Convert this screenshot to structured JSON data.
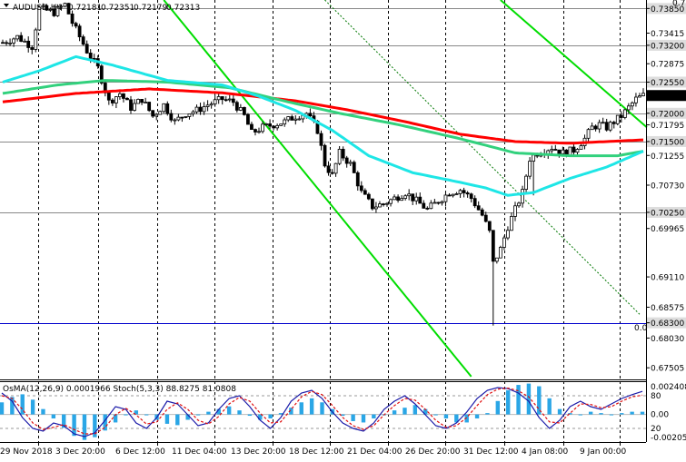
{
  "window": {
    "icon": "chevron-down-icon"
  },
  "chart_data": {
    "type": "candlestick",
    "header": {
      "symbol": "AUDUSD,H4",
      "ohlc": [
        "0.72181",
        "0.72351",
        "0.72179",
        "0.72313"
      ]
    },
    "price_axis": {
      "ylim": [
        0.673,
        0.74
      ],
      "ticks": [
        "0.73850",
        "0.73415",
        "0.73200",
        "0.72875",
        "0.72550",
        "0.72313",
        "0.72000",
        "0.71795",
        "0.71500",
        "0.71255",
        "0.70730",
        "0.70250",
        "0.69965",
        "0.69110",
        "0.68575",
        "0.68300",
        "0.68030",
        "0.67505"
      ],
      "tick_values": [
        0.7385,
        0.73415,
        0.732,
        0.72875,
        0.7255,
        0.72313,
        0.72,
        0.71795,
        0.715,
        0.71255,
        0.7073,
        0.7025,
        0.69965,
        0.6911,
        0.68575,
        0.683,
        0.6803,
        0.67505
      ],
      "boxed": [
        "0.73850",
        "0.73200",
        "0.72550",
        "0.72000",
        "0.71500",
        "0.70250",
        "0.68300"
      ],
      "current": "0.72313",
      "current_value": 0.72313,
      "top_cut": "0.7",
      "level_label": "0.0",
      "level_line": 0.683
    },
    "time_axis": {
      "labels": [
        "29 Nov 2018",
        "3 Dec 20:00",
        "6 Dec 12:00",
        "11 Dec 04:00",
        "13 Dec 20:00",
        "18 Dec 12:00",
        "21 Dec 04:00",
        "26 Dec 20:00",
        "31 Dec 12:00",
        "4 Jan 08:00",
        "9 Jan 00:00"
      ],
      "bar_count": 176
    },
    "horizontal_levels": [
      0.7385,
      0.732,
      0.7255,
      0.72,
      0.715,
      0.7025
    ],
    "price_path": [
      [
        0,
        0.7325
      ],
      [
        4,
        0.7335
      ],
      [
        8,
        0.7318
      ],
      [
        10,
        0.7385
      ],
      [
        14,
        0.7378
      ],
      [
        17,
        0.7392
      ],
      [
        19,
        0.736
      ],
      [
        23,
        0.731
      ],
      [
        26,
        0.728
      ],
      [
        29,
        0.722
      ],
      [
        32,
        0.7235
      ],
      [
        35,
        0.721
      ],
      [
        38,
        0.7225
      ],
      [
        41,
        0.7195
      ],
      [
        44,
        0.7215
      ],
      [
        47,
        0.7185
      ],
      [
        50,
        0.72
      ],
      [
        53,
        0.7205
      ],
      [
        56,
        0.7215
      ],
      [
        60,
        0.7225
      ],
      [
        63,
        0.722
      ],
      [
        66,
        0.7195
      ],
      [
        68,
        0.7165
      ],
      [
        71,
        0.7175
      ],
      [
        74,
        0.718
      ],
      [
        77,
        0.7185
      ],
      [
        80,
        0.7195
      ],
      [
        83,
        0.72
      ],
      [
        86,
        0.717
      ],
      [
        88,
        0.711
      ],
      [
        90,
        0.709
      ],
      [
        92,
        0.713
      ],
      [
        95,
        0.711
      ],
      [
        98,
        0.706
      ],
      [
        101,
        0.7035
      ],
      [
        104,
        0.704
      ],
      [
        107,
        0.705
      ],
      [
        110,
        0.706
      ],
      [
        113,
        0.7045
      ],
      [
        116,
        0.703
      ],
      [
        119,
        0.7045
      ],
      [
        122,
        0.706
      ],
      [
        125,
        0.7065
      ],
      [
        128,
        0.705
      ],
      [
        131,
        0.702
      ],
      [
        133,
        0.699
      ],
      [
        134,
        0.6935
      ],
      [
        136,
        0.696
      ],
      [
        138,
        0.7
      ],
      [
        140,
        0.703
      ],
      [
        142,
        0.706
      ],
      [
        144,
        0.712
      ],
      [
        146,
        0.713
      ],
      [
        148,
        0.7135
      ],
      [
        150,
        0.714
      ],
      [
        153,
        0.713
      ],
      [
        156,
        0.7135
      ],
      [
        159,
        0.7155
      ],
      [
        161,
        0.7175
      ],
      [
        163,
        0.718
      ],
      [
        165,
        0.7175
      ],
      [
        167,
        0.7185
      ],
      [
        169,
        0.7195
      ],
      [
        171,
        0.721
      ],
      [
        173,
        0.7225
      ],
      [
        175,
        0.72313
      ]
    ],
    "wicks": [
      [
        134,
        0.6825,
        0.6965
      ],
      [
        145,
        0.7055,
        0.7125
      ]
    ],
    "ma_slow": {
      "color": "#ff0000",
      "points": [
        [
          0,
          0.722
        ],
        [
          20,
          0.7235
        ],
        [
          40,
          0.7243
        ],
        [
          60,
          0.7236
        ],
        [
          80,
          0.7222
        ],
        [
          95,
          0.7205
        ],
        [
          110,
          0.7185
        ],
        [
          125,
          0.7163
        ],
        [
          140,
          0.715
        ],
        [
          155,
          0.7147
        ],
        [
          165,
          0.715
        ],
        [
          175,
          0.7153
        ]
      ]
    },
    "ma_mid": {
      "color": "#32d17d",
      "points": [
        [
          0,
          0.7235
        ],
        [
          15,
          0.725
        ],
        [
          28,
          0.7258
        ],
        [
          45,
          0.7255
        ],
        [
          62,
          0.7245
        ],
        [
          78,
          0.722
        ],
        [
          92,
          0.72
        ],
        [
          108,
          0.718
        ],
        [
          125,
          0.7155
        ],
        [
          140,
          0.713
        ],
        [
          155,
          0.7125
        ],
        [
          168,
          0.7125
        ],
        [
          175,
          0.7133
        ]
      ]
    },
    "ma_fast": {
      "color": "#1ee6e6",
      "points": [
        [
          0,
          0.7255
        ],
        [
          10,
          0.7275
        ],
        [
          20,
          0.73
        ],
        [
          30,
          0.7285
        ],
        [
          45,
          0.7258
        ],
        [
          60,
          0.725
        ],
        [
          70,
          0.723
        ],
        [
          80,
          0.7205
        ],
        [
          90,
          0.717
        ],
        [
          100,
          0.7125
        ],
        [
          112,
          0.7095
        ],
        [
          125,
          0.7078
        ],
        [
          132,
          0.7068
        ],
        [
          138,
          0.7055
        ],
        [
          145,
          0.706
        ],
        [
          155,
          0.7085
        ],
        [
          165,
          0.7105
        ],
        [
          175,
          0.7133
        ]
      ]
    },
    "channel_lines": {
      "color": "#00dd00",
      "solid": [
        [
          [
            44,
            0.74
          ],
          [
            128,
            0.6735
          ]
        ],
        [
          [
            136,
            0.74
          ],
          [
            176,
            0.7175
          ]
        ]
      ],
      "dotted": [
        [
          [
            88,
            0.74
          ],
          [
            174,
            0.6845
          ]
        ]
      ]
    },
    "oscillator": {
      "label": "OsMA(12,26,9) 0.0001966  Stoch(5,3,3) 88.8275 81.0808",
      "ticks": [
        "0.0024080",
        "80",
        "0.00",
        "20",
        "-0.002059"
      ],
      "levels": [
        80,
        20
      ],
      "osma": [
        0.0009,
        0.0013,
        0.0015,
        0.0011,
        0.0004,
        -0.0003,
        -0.001,
        -0.0016,
        -0.0019,
        -0.0017,
        -0.0012,
        -0.0006,
        0.0,
        0.0003,
        0.0,
        -0.0004,
        -0.0007,
        -0.0008,
        -0.0004,
        0.0,
        0.0002,
        0.0004,
        0.0006,
        0.0003,
        -0.0001,
        -0.0004,
        -0.0003,
        0.0001,
        0.0005,
        0.0009,
        0.0012,
        0.0009,
        0.0004,
        -0.0001,
        -0.0005,
        -0.0006,
        -0.0003,
        0.0,
        0.0003,
        0.0005,
        0.0007,
        0.0004,
        0.0,
        -0.0003,
        -0.0006,
        -0.0006,
        -0.0003,
        0.0001,
        0.001,
        0.0018,
        0.0022,
        0.0023,
        0.0021,
        0.0012,
        0.0004,
        0.0001,
        0.0,
        0.0002,
        0.0001,
        0.0,
        0.0001,
        0.0002,
        0.0002
      ],
      "stoch_k": [
        85,
        70,
        40,
        20,
        15,
        30,
        25,
        10,
        5,
        12,
        35,
        60,
        55,
        30,
        20,
        40,
        70,
        65,
        45,
        25,
        30,
        55,
        75,
        80,
        60,
        35,
        20,
        40,
        70,
        85,
        90,
        75,
        50,
        30,
        20,
        15,
        30,
        55,
        70,
        80,
        65,
        45,
        25,
        20,
        30,
        50,
        75,
        90,
        95,
        93,
        85,
        70,
        40,
        20,
        35,
        60,
        70,
        60,
        55,
        65,
        75,
        82,
        88
      ],
      "stoch_d": [
        80,
        75,
        55,
        30,
        18,
        22,
        27,
        18,
        10,
        10,
        22,
        45,
        57,
        45,
        28,
        32,
        55,
        67,
        55,
        35,
        28,
        42,
        65,
        77,
        70,
        48,
        30,
        32,
        55,
        78,
        88,
        82,
        62,
        40,
        25,
        18,
        25,
        45,
        62,
        75,
        72,
        55,
        35,
        22,
        25,
        40,
        62,
        82,
        92,
        94,
        89,
        78,
        55,
        32,
        30,
        48,
        65,
        64,
        58,
        60,
        70,
        78,
        81
      ]
    }
  }
}
